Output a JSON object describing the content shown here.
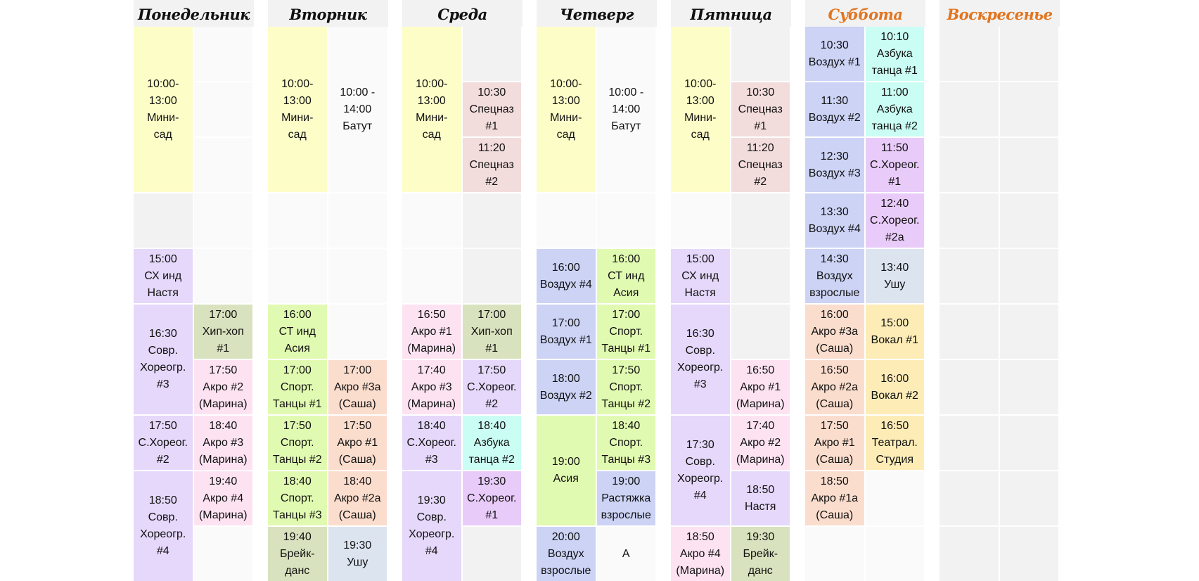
{
  "colors": {
    "yellow": "#fdfdc8",
    "lavender": "#e5d8fa",
    "blue": "#ccd3f5",
    "pink": "#fde3f2",
    "green": "#e1fab1",
    "sage": "#d8e2be",
    "rose": "#f3dcdc",
    "peach": "#fbddce",
    "cyan": "#cafdf3",
    "violet": "#e9cbfa",
    "grayblue": "#dce4f0",
    "cream": "#fdecb6",
    "white": "#fafafa",
    "title_weekday": "#111111",
    "title_weekend": "#e2751f"
  },
  "days": [
    {
      "title": "Понедельник",
      "weekend": false,
      "shade": [
        true,
        false
      ],
      "classes": [
        {
          "c": 0,
          "r": 0,
          "span": 3,
          "color": "yellow",
          "lines": [
            "10:00-",
            "13:00",
            "Мини-",
            "сад"
          ]
        },
        {
          "c": 0,
          "r": 4,
          "span": 1,
          "color": "lavender",
          "lines": [
            "15:00",
            "СХ инд",
            "Настя"
          ]
        },
        {
          "c": 0,
          "r": 5,
          "span": 2,
          "color": "lavender",
          "lines": [
            "16:30",
            "Совр.",
            "Хореогр.",
            "#3"
          ]
        },
        {
          "c": 1,
          "r": 5,
          "span": 1,
          "color": "sage",
          "lines": [
            "17:00",
            "Хип-хоп",
            "#1"
          ]
        },
        {
          "c": 1,
          "r": 6,
          "span": 1,
          "color": "pink",
          "lines": [
            "17:50",
            "Акро #2",
            "(Марина)"
          ]
        },
        {
          "c": 0,
          "r": 7,
          "span": 1,
          "color": "lavender",
          "lines": [
            "17:50",
            "С.Хореог.",
            "#2"
          ]
        },
        {
          "c": 1,
          "r": 7,
          "span": 1,
          "color": "pink",
          "lines": [
            "18:40",
            "Акро #3",
            "(Марина)"
          ]
        },
        {
          "c": 0,
          "r": 8,
          "span": 2,
          "color": "lavender",
          "lines": [
            "18:50",
            "Совр.",
            "Хореогр.",
            "#4"
          ]
        },
        {
          "c": 1,
          "r": 8,
          "span": 1,
          "color": "pink",
          "lines": [
            "19:40",
            "Акро #4",
            "(Марина)"
          ]
        }
      ]
    },
    {
      "title": "Вторник",
      "weekend": false,
      "shade": [
        false,
        false
      ],
      "classes": [
        {
          "c": 0,
          "r": 0,
          "span": 3,
          "color": "yellow",
          "lines": [
            "10:00-",
            "13:00",
            "Мини-",
            "сад"
          ]
        },
        {
          "c": 1,
          "r": 0,
          "span": 3,
          "color": "white",
          "lines": [
            "10:00 -",
            "14:00",
            "Батут"
          ]
        },
        {
          "c": 0,
          "r": 5,
          "span": 1,
          "color": "green",
          "lines": [
            "16:00",
            "СТ инд",
            "Асия"
          ]
        },
        {
          "c": 0,
          "r": 6,
          "span": 1,
          "color": "green",
          "lines": [
            "17:00",
            "Спорт.",
            "Танцы #1"
          ]
        },
        {
          "c": 1,
          "r": 6,
          "span": 1,
          "color": "peach",
          "lines": [
            "17:00",
            "Акро #3а",
            "(Саша)"
          ]
        },
        {
          "c": 0,
          "r": 7,
          "span": 1,
          "color": "green",
          "lines": [
            "17:50",
            "Спорт.",
            "Танцы #2"
          ]
        },
        {
          "c": 1,
          "r": 7,
          "span": 1,
          "color": "peach",
          "lines": [
            "17:50",
            "Акро #1",
            "(Саша)"
          ]
        },
        {
          "c": 0,
          "r": 8,
          "span": 1,
          "color": "green",
          "lines": [
            "18:40",
            "Спорт.",
            "Танцы #3"
          ]
        },
        {
          "c": 1,
          "r": 8,
          "span": 1,
          "color": "peach",
          "lines": [
            "18:40",
            "Акро #2а",
            "(Саша)"
          ]
        },
        {
          "c": 0,
          "r": 9,
          "span": 1,
          "color": "sage",
          "lines": [
            "19:40",
            "Брейк-",
            "данс"
          ]
        },
        {
          "c": 1,
          "r": 9,
          "span": 1,
          "color": "grayblue",
          "lines": [
            "19:30",
            "Ушу"
          ]
        }
      ]
    },
    {
      "title": "Среда",
      "weekend": false,
      "shade": [
        false,
        true
      ],
      "classes": [
        {
          "c": 0,
          "r": 0,
          "span": 3,
          "color": "yellow",
          "lines": [
            "10:00-",
            "13:00",
            "Мини-",
            "сад"
          ]
        },
        {
          "c": 1,
          "r": 1,
          "span": 1,
          "color": "rose",
          "lines": [
            "10:30",
            "Спецназ",
            "#1"
          ]
        },
        {
          "c": 1,
          "r": 2,
          "span": 1,
          "color": "rose",
          "lines": [
            "11:20",
            "Спецназ",
            "#2"
          ]
        },
        {
          "c": 0,
          "r": 5,
          "span": 1,
          "color": "pink",
          "lines": [
            "16:50",
            "Акро #1",
            "(Марина)"
          ]
        },
        {
          "c": 1,
          "r": 5,
          "span": 1,
          "color": "sage",
          "lines": [
            "17:00",
            "Хип-хоп",
            "#1"
          ]
        },
        {
          "c": 0,
          "r": 6,
          "span": 1,
          "color": "pink",
          "lines": [
            "17:40",
            "Акро #3",
            "(Марина)"
          ]
        },
        {
          "c": 1,
          "r": 6,
          "span": 1,
          "color": "lavender",
          "lines": [
            "17:50",
            "С.Хореог.",
            "#2"
          ]
        },
        {
          "c": 0,
          "r": 7,
          "span": 1,
          "color": "lavender",
          "lines": [
            "18:40",
            "С.Хореог.",
            "#3"
          ]
        },
        {
          "c": 1,
          "r": 7,
          "span": 1,
          "color": "cyan",
          "lines": [
            "18:40",
            "Азбука",
            "танца #2"
          ]
        },
        {
          "c": 0,
          "r": 8,
          "span": 2,
          "color": "lavender",
          "lines": [
            "19:30",
            "Совр.",
            "Хореогр.",
            "#4"
          ]
        },
        {
          "c": 1,
          "r": 8,
          "span": 1,
          "color": "violet",
          "lines": [
            "19:30",
            "С.Хореог.",
            "#1"
          ]
        }
      ]
    },
    {
      "title": "Четверг",
      "weekend": false,
      "shade": [
        false,
        false
      ],
      "classes": [
        {
          "c": 0,
          "r": 0,
          "span": 3,
          "color": "yellow",
          "lines": [
            "10:00-",
            "13:00",
            "Мини-",
            "сад"
          ]
        },
        {
          "c": 1,
          "r": 0,
          "span": 3,
          "color": "white",
          "lines": [
            "10:00 -",
            "14:00",
            "Батут"
          ]
        },
        {
          "c": 0,
          "r": 4,
          "span": 1,
          "color": "blue",
          "lines": [
            "16:00",
            "Воздух #4"
          ]
        },
        {
          "c": 1,
          "r": 4,
          "span": 1,
          "color": "green",
          "lines": [
            "16:00",
            "СТ инд",
            "Асия"
          ]
        },
        {
          "c": 0,
          "r": 5,
          "span": 1,
          "color": "blue",
          "lines": [
            "17:00",
            "Воздух #1"
          ]
        },
        {
          "c": 1,
          "r": 5,
          "span": 1,
          "color": "green",
          "lines": [
            "17:00",
            "Спорт.",
            "Танцы #1"
          ]
        },
        {
          "c": 0,
          "r": 6,
          "span": 1,
          "color": "blue",
          "lines": [
            "18:00",
            "Воздух #2"
          ]
        },
        {
          "c": 1,
          "r": 6,
          "span": 1,
          "color": "green",
          "lines": [
            "17:50",
            "Спорт.",
            "Танцы #2"
          ]
        },
        {
          "c": 0,
          "r": 7,
          "span": 2,
          "color": "green",
          "lines": [
            "19:00",
            "Асия"
          ]
        },
        {
          "c": 1,
          "r": 7,
          "span": 1,
          "color": "green",
          "lines": [
            "18:40",
            "Спорт.",
            "Танцы #3"
          ]
        },
        {
          "c": 1,
          "r": 8,
          "span": 1,
          "color": "blue",
          "lines": [
            "19:00",
            "Растяжка",
            "взрослые"
          ]
        },
        {
          "c": 0,
          "r": 9,
          "span": 1,
          "color": "blue",
          "lines": [
            "20:00",
            "Воздух",
            "взрослые"
          ]
        },
        {
          "c": 1,
          "r": 9,
          "span": 1,
          "color": "white",
          "lines": [
            "А"
          ]
        }
      ]
    },
    {
      "title": "Пятница",
      "weekend": false,
      "shade": [
        false,
        true
      ],
      "classes": [
        {
          "c": 0,
          "r": 0,
          "span": 3,
          "color": "yellow",
          "lines": [
            "10:00-",
            "13:00",
            "Мини-",
            "сад"
          ]
        },
        {
          "c": 1,
          "r": 1,
          "span": 1,
          "color": "rose",
          "lines": [
            "10:30",
            "Спецназ",
            "#1"
          ]
        },
        {
          "c": 1,
          "r": 2,
          "span": 1,
          "color": "rose",
          "lines": [
            "11:20",
            "Спецназ",
            "#2"
          ]
        },
        {
          "c": 0,
          "r": 4,
          "span": 1,
          "color": "lavender",
          "lines": [
            "15:00",
            "СХ инд",
            "Настя"
          ]
        },
        {
          "c": 0,
          "r": 5,
          "span": 2,
          "color": "lavender",
          "lines": [
            "16:30",
            "Совр.",
            "Хореогр.",
            "#3"
          ]
        },
        {
          "c": 1,
          "r": 6,
          "span": 1,
          "color": "pink",
          "lines": [
            "16:50",
            "Акро #1",
            "(Марина)"
          ]
        },
        {
          "c": 0,
          "r": 7,
          "span": 2,
          "color": "lavender",
          "lines": [
            "17:30",
            "Совр.",
            "Хореогр.",
            "#4"
          ]
        },
        {
          "c": 1,
          "r": 7,
          "span": 1,
          "color": "pink",
          "lines": [
            "17:40",
            "Акро #2",
            "(Марина)"
          ]
        },
        {
          "c": 1,
          "r": 8,
          "span": 1,
          "color": "lavender",
          "lines": [
            "18:50",
            "Настя"
          ]
        },
        {
          "c": 0,
          "r": 9,
          "span": 1,
          "color": "pink",
          "lines": [
            "18:50",
            "Акро #4",
            "(Марина)"
          ]
        },
        {
          "c": 1,
          "r": 9,
          "span": 1,
          "color": "sage",
          "lines": [
            "19:30",
            "Брейк-",
            "данс"
          ]
        }
      ]
    },
    {
      "title": "Суббота",
      "weekend": true,
      "shade": [
        false,
        false
      ],
      "classes": [
        {
          "c": 0,
          "r": 0,
          "span": 1,
          "color": "blue",
          "lines": [
            "10:30",
            "Воздух #1"
          ]
        },
        {
          "c": 1,
          "r": 0,
          "span": 1,
          "color": "cyan",
          "lines": [
            "10:10",
            "Азбука",
            "танца #1"
          ]
        },
        {
          "c": 0,
          "r": 1,
          "span": 1,
          "color": "blue",
          "lines": [
            "11:30",
            "Воздух #2"
          ]
        },
        {
          "c": 1,
          "r": 1,
          "span": 1,
          "color": "cyan",
          "lines": [
            "11:00",
            "Азбука",
            "танца #2"
          ]
        },
        {
          "c": 0,
          "r": 2,
          "span": 1,
          "color": "blue",
          "lines": [
            "12:30",
            "Воздух #3"
          ]
        },
        {
          "c": 1,
          "r": 2,
          "span": 1,
          "color": "violet",
          "lines": [
            "11:50",
            "С.Хореог.",
            "#1"
          ]
        },
        {
          "c": 0,
          "r": 3,
          "span": 1,
          "color": "blue",
          "lines": [
            "13:30",
            "Воздух #4"
          ]
        },
        {
          "c": 1,
          "r": 3,
          "span": 1,
          "color": "violet",
          "lines": [
            "12:40",
            "С.Хореог.",
            "#2а"
          ]
        },
        {
          "c": 0,
          "r": 4,
          "span": 1,
          "color": "blue",
          "lines": [
            "14:30",
            "Воздух",
            "взрослые"
          ]
        },
        {
          "c": 1,
          "r": 4,
          "span": 1,
          "color": "grayblue",
          "lines": [
            "13:40",
            "Ушу"
          ]
        },
        {
          "c": 0,
          "r": 5,
          "span": 1,
          "color": "peach",
          "lines": [
            "16:00",
            "Акро #3а",
            "(Саша)"
          ]
        },
        {
          "c": 1,
          "r": 5,
          "span": 1,
          "color": "cream",
          "lines": [
            "15:00",
            "Вокал #1"
          ]
        },
        {
          "c": 0,
          "r": 6,
          "span": 1,
          "color": "peach",
          "lines": [
            "16:50",
            "Акро #2а",
            "(Саша)"
          ]
        },
        {
          "c": 1,
          "r": 6,
          "span": 1,
          "color": "cream",
          "lines": [
            "16:00",
            "Вокал #2"
          ]
        },
        {
          "c": 0,
          "r": 7,
          "span": 1,
          "color": "peach",
          "lines": [
            "17:50",
            "Акро #1",
            "(Саша)"
          ]
        },
        {
          "c": 1,
          "r": 7,
          "span": 1,
          "color": "cream",
          "lines": [
            "16:50",
            "Театрал.",
            "Студия"
          ]
        },
        {
          "c": 0,
          "r": 8,
          "span": 1,
          "color": "peach",
          "lines": [
            "18:50",
            "Акро #1а",
            "(Саша)"
          ]
        }
      ]
    },
    {
      "title": "Воскресенье",
      "weekend": true,
      "shade": [
        true,
        true
      ],
      "classes": []
    }
  ]
}
